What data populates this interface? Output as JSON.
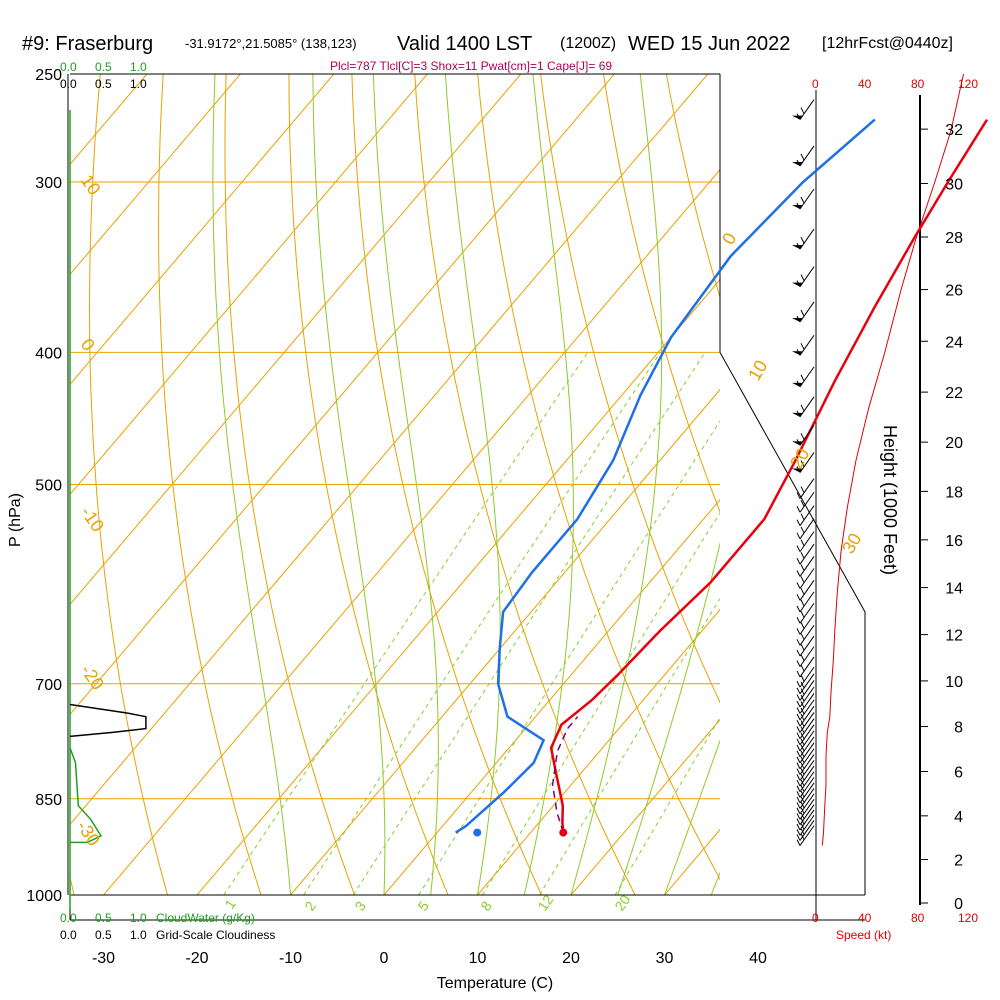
{
  "header": {
    "station": "#9: Fraserburg",
    "coords": "-31.9172°,21.5085° (138,123)",
    "valid": "Valid 1400 LST",
    "zulu": "(1200Z)",
    "date": "WED 15 Jun 2022",
    "fcst": "[12hrFcst@0440z]",
    "indices": "Plcl=787 Tlcl[C]=3 Shox=11 Pwat[cm]=1 Cape[J]= 69"
  },
  "colors": {
    "temp": "#e8000b",
    "dew": "#1f6fe8",
    "parcel": "#7a007a",
    "isotherm": "#e8a200",
    "mixing": "#8ccc2a",
    "cloud": "#1ea01e",
    "speed": "#e00000",
    "indices": "#b0005a"
  },
  "top_scales": {
    "cloudwater_ticks": [
      "0.0",
      "0.5",
      "1.0"
    ],
    "cloudiness_ticks": [
      "0.0",
      "0.5",
      "1.0"
    ],
    "speed_ticks": [
      "0",
      "40",
      "80",
      "120"
    ]
  },
  "bottom_scales": {
    "cloudwater_ticks": [
      "0.0",
      "0.5",
      "1.0"
    ],
    "cloudwater_label": "CloudWater (g/Kg)",
    "cloudiness_ticks": [
      "0.0",
      "0.5",
      "1.0"
    ],
    "cloudiness_label": "Grid-Scale Cloudiness",
    "speed_ticks": [
      "0",
      "40",
      "80",
      "120"
    ],
    "speed_label": "Speed (kt)"
  },
  "isotherm_labels": [
    "10",
    "0",
    "-10",
    "-20",
    "-30",
    "0",
    "10",
    "20",
    "30"
  ],
  "mixing_labels": [
    "1",
    "2",
    "3",
    "5",
    "8",
    "12",
    "20"
  ],
  "chart_data": {
    "type": "line",
    "xlabel": "Temperature (C)",
    "ylabel": "P (hPa)",
    "y2label": "Height (1000 Feet)",
    "xlim": [
      -35,
      45
    ],
    "x_ticks": [
      -30,
      -20,
      -10,
      0,
      10,
      20,
      30,
      40
    ],
    "y_ticks": [
      250,
      300,
      400,
      500,
      700,
      850,
      1000
    ],
    "y2_ticks": [
      0,
      2,
      4,
      6,
      8,
      10,
      12,
      14,
      16,
      18,
      20,
      22,
      24,
      26,
      28,
      30,
      32
    ],
    "series": [
      {
        "key": "temperature",
        "points": [
          [
            -6,
            270
          ],
          [
            -4.5,
            300
          ],
          [
            -3,
            330
          ],
          [
            -1,
            370
          ],
          [
            1.5,
            420
          ],
          [
            4.5,
            480
          ],
          [
            6.5,
            530
          ],
          [
            6.5,
            590
          ],
          [
            5.5,
            640
          ],
          [
            5,
            690
          ],
          [
            4.5,
            720
          ],
          [
            3.5,
            750
          ],
          [
            4.5,
            780
          ],
          [
            7,
            810
          ],
          [
            11,
            860
          ],
          [
            12.5,
            885
          ],
          [
            13.5,
            900
          ]
        ]
      },
      {
        "key": "dewpoint",
        "points": [
          [
            -18,
            270
          ],
          [
            -20,
            300
          ],
          [
            -21,
            340
          ],
          [
            -20,
            390
          ],
          [
            -18,
            430
          ],
          [
            -15,
            480
          ],
          [
            -13.5,
            530
          ],
          [
            -13.5,
            580
          ],
          [
            -13,
            620
          ],
          [
            -10,
            660
          ],
          [
            -7,
            700
          ],
          [
            -3,
            740
          ],
          [
            3,
            770
          ],
          [
            4,
            800
          ],
          [
            3.5,
            840
          ],
          [
            2.5,
            890
          ],
          [
            2,
            900
          ]
        ]
      },
      {
        "key": "parcel",
        "points": [
          [
            13.5,
            900
          ],
          [
            11,
            870
          ],
          [
            8,
            830
          ],
          [
            5.5,
            785
          ],
          [
            4.5,
            755
          ],
          [
            4.5,
            740
          ]
        ]
      },
      {
        "key": "cloudiness",
        "points": [
          [
            0,
            725
          ],
          [
            0.8,
            735
          ],
          [
            1.1,
            740
          ],
          [
            1.1,
            755
          ],
          [
            0.6,
            760
          ],
          [
            0,
            765
          ]
        ]
      },
      {
        "key": "cloudwater",
        "points": [
          [
            0,
            780
          ],
          [
            0.08,
            800
          ],
          [
            0.12,
            860
          ],
          [
            0.3,
            880
          ],
          [
            0.45,
            905
          ],
          [
            0.25,
            915
          ],
          [
            0,
            915
          ]
        ]
      },
      {
        "key": "windspeed",
        "points": [
          [
            5,
            920
          ],
          [
            6,
            900
          ],
          [
            7,
            860
          ],
          [
            8,
            830
          ],
          [
            8,
            790
          ],
          [
            9,
            760
          ],
          [
            11,
            740
          ],
          [
            12,
            710
          ],
          [
            14,
            670
          ],
          [
            15,
            640
          ],
          [
            17,
            600
          ],
          [
            20,
            560
          ],
          [
            25,
            520
          ],
          [
            32,
            480
          ],
          [
            42,
            440
          ],
          [
            55,
            400
          ],
          [
            68,
            360
          ],
          [
            80,
            330
          ],
          [
            95,
            300
          ],
          [
            108,
            275
          ],
          [
            118,
            250
          ]
        ]
      }
    ]
  }
}
